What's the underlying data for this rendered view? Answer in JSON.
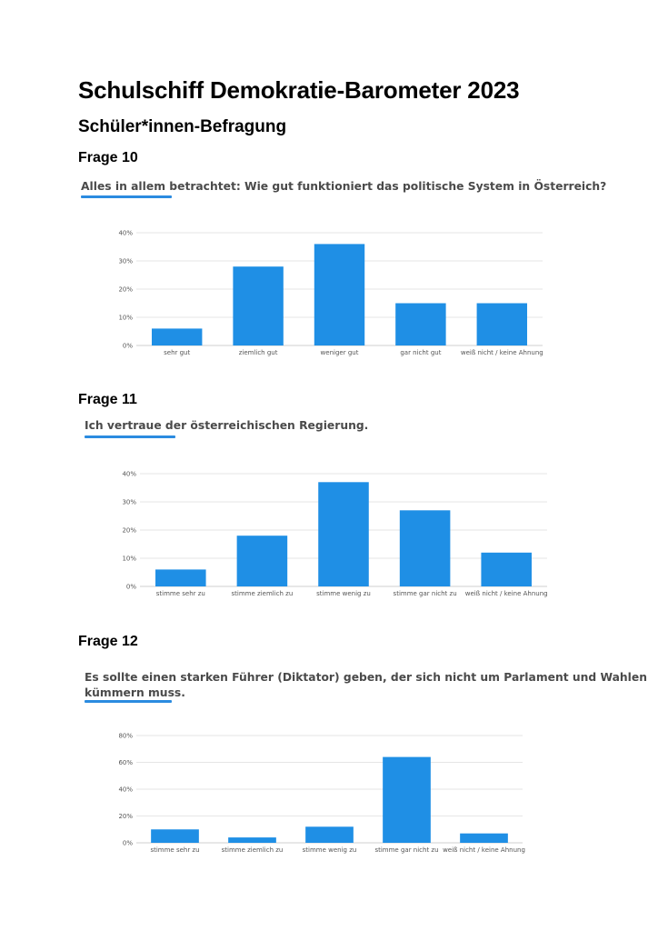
{
  "document": {
    "title": "Schulschiff Demokratie-Barometer 2023",
    "subtitle": "Schüler*innen-Befragung"
  },
  "colors": {
    "bar": "#1f8fe5",
    "underline": "#2b8be0",
    "grid": "#e6e6e6"
  },
  "sections": [
    {
      "label": "Frage 10",
      "question_lines": [
        "Alles in allem betrachtet: Wie gut funktioniert das politische System in Österreich?"
      ]
    },
    {
      "label": "Frage 11",
      "question_lines": [
        "Ich vertraue der österreichischen Regierung."
      ]
    },
    {
      "label": "Frage 12",
      "question_lines": [
        "Es sollte einen starken Führer (Diktator) geben, der sich nicht um Parlament und Wahlen",
        "kümmern muss."
      ]
    }
  ],
  "chart_data": [
    {
      "type": "bar",
      "title": "",
      "categories": [
        "sehr gut",
        "ziemlich gut",
        "weniger gut",
        "gar nicht gut",
        "weiß nicht / keine Ahnung"
      ],
      "values": [
        6,
        28,
        36,
        15,
        15
      ],
      "ylim": [
        0,
        40
      ],
      "yticks": [
        "0%",
        "10%",
        "20%",
        "30%",
        "40%"
      ],
      "grid": true
    },
    {
      "type": "bar",
      "title": "",
      "categories": [
        "stimme sehr zu",
        "stimme ziemlich zu",
        "stimme wenig zu",
        "stimme gar nicht zu",
        "weiß nicht / keine Ahnung"
      ],
      "values": [
        6,
        18,
        37,
        27,
        12
      ],
      "ylim": [
        0,
        40
      ],
      "yticks": [
        "0%",
        "10%",
        "20%",
        "30%",
        "40%"
      ],
      "grid": true
    },
    {
      "type": "bar",
      "title": "",
      "categories": [
        "stimme sehr zu",
        "stimme ziemlich zu",
        "stimme wenig zu",
        "stimme gar nicht zu",
        "weiß nicht / keine Ahnung"
      ],
      "values": [
        10,
        4,
        12,
        64,
        7
      ],
      "ylim": [
        0,
        80
      ],
      "yticks": [
        "0%",
        "20%",
        "40%",
        "60%",
        "80%"
      ],
      "grid": true
    }
  ]
}
